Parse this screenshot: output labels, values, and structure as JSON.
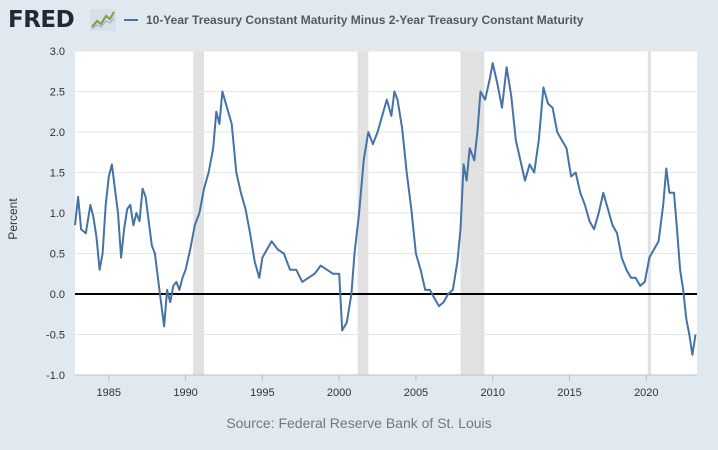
{
  "brand": {
    "name": "FRED",
    "icon": "fred-chart-icon"
  },
  "colors": {
    "series": "#4572a7",
    "recession": "#e1e1e1",
    "zero_line": "#000000",
    "grid": "#e6e6e6",
    "plot_bg": "#ffffff",
    "page_bg": "#e1e9f0"
  },
  "source": "Source: Federal Reserve Bank of St. Louis",
  "chart_data": {
    "type": "line",
    "title": "10-Year Treasury Constant Maturity Minus 2-Year Treasury Constant Maturity",
    "xlabel": "",
    "ylabel": "Percent",
    "xlim": [
      1982.8,
      2023.3
    ],
    "ylim": [
      -1.0,
      3.0
    ],
    "yticks": [
      {
        "value": 3.0,
        "label": "3.0"
      },
      {
        "value": 2.5,
        "label": "2.5"
      },
      {
        "value": 2.0,
        "label": "2.0"
      },
      {
        "value": 1.5,
        "label": "1.5"
      },
      {
        "value": 1.0,
        "label": "1.0"
      },
      {
        "value": 0.5,
        "label": "0.5"
      },
      {
        "value": 0.0,
        "label": "0.0"
      },
      {
        "value": -0.5,
        "label": "-0.5"
      },
      {
        "value": -1.0,
        "label": "-1.0"
      }
    ],
    "xticks": [
      {
        "value": 1985,
        "label": "1985"
      },
      {
        "value": 1990,
        "label": "1990"
      },
      {
        "value": 1995,
        "label": "1995"
      },
      {
        "value": 2000,
        "label": "2000"
      },
      {
        "value": 2005,
        "label": "2005"
      },
      {
        "value": 2010,
        "label": "2010"
      },
      {
        "value": 2015,
        "label": "2015"
      },
      {
        "value": 2020,
        "label": "2020"
      }
    ],
    "recessions": [
      [
        1990.5,
        1991.2
      ],
      [
        2001.2,
        2001.9
      ],
      [
        2007.9,
        2009.45
      ],
      [
        2020.1,
        2020.3
      ]
    ],
    "zero_line": 0.0,
    "series": [
      {
        "name": "10-Year Treasury Constant Maturity Minus 2-Year Treasury Constant Maturity",
        "x": [
          1982.8,
          1983.0,
          1983.2,
          1983.5,
          1983.8,
          1984.0,
          1984.2,
          1984.4,
          1984.6,
          1984.8,
          1985.0,
          1985.2,
          1985.4,
          1985.6,
          1985.8,
          1986.0,
          1986.2,
          1986.4,
          1986.6,
          1986.8,
          1987.0,
          1987.2,
          1987.4,
          1987.6,
          1987.8,
          1988.0,
          1988.2,
          1988.4,
          1988.6,
          1988.8,
          1989.0,
          1989.2,
          1989.4,
          1989.6,
          1989.8,
          1990.0,
          1990.3,
          1990.6,
          1990.9,
          1991.2,
          1991.5,
          1991.8,
          1992.0,
          1992.2,
          1992.4,
          1992.7,
          1993.0,
          1993.3,
          1993.6,
          1993.9,
          1994.2,
          1994.5,
          1994.8,
          1995.0,
          1995.3,
          1995.6,
          1996.0,
          1996.4,
          1996.8,
          1997.2,
          1997.6,
          1998.0,
          1998.4,
          1998.8,
          1999.2,
          1999.6,
          2000.0,
          2000.2,
          2000.5,
          2000.8,
          2001.0,
          2001.3,
          2001.6,
          2001.9,
          2002.2,
          2002.5,
          2002.8,
          2003.1,
          2003.4,
          2003.6,
          2003.8,
          2004.1,
          2004.4,
          2004.7,
          2005.0,
          2005.3,
          2005.6,
          2005.9,
          2006.2,
          2006.5,
          2006.8,
          2007.1,
          2007.4,
          2007.7,
          2007.9,
          2008.1,
          2008.3,
          2008.5,
          2008.8,
          2009.0,
          2009.2,
          2009.5,
          2009.8,
          2010.0,
          2010.3,
          2010.6,
          2010.9,
          2011.2,
          2011.5,
          2011.8,
          2012.1,
          2012.4,
          2012.7,
          2013.0,
          2013.3,
          2013.6,
          2013.9,
          2014.2,
          2014.5,
          2014.8,
          2015.1,
          2015.4,
          2015.7,
          2016.0,
          2016.3,
          2016.6,
          2016.9,
          2017.2,
          2017.5,
          2017.8,
          2018.1,
          2018.4,
          2018.7,
          2019.0,
          2019.3,
          2019.6,
          2019.9,
          2020.2,
          2020.5,
          2020.8,
          2021.1,
          2021.3,
          2021.5,
          2021.8,
          2022.0,
          2022.2,
          2022.4,
          2022.6,
          2022.8,
          2023.0,
          2023.2
        ],
        "values": [
          0.85,
          1.2,
          0.8,
          0.75,
          1.1,
          0.95,
          0.7,
          0.3,
          0.5,
          1.1,
          1.45,
          1.6,
          1.3,
          1.0,
          0.45,
          0.8,
          1.05,
          1.1,
          0.85,
          1.0,
          0.9,
          1.3,
          1.2,
          0.9,
          0.6,
          0.5,
          0.2,
          -0.1,
          -0.4,
          0.05,
          -0.1,
          0.1,
          0.15,
          0.05,
          0.2,
          0.3,
          0.55,
          0.85,
          1.0,
          1.3,
          1.5,
          1.8,
          2.25,
          2.1,
          2.5,
          2.3,
          2.1,
          1.5,
          1.25,
          1.05,
          0.75,
          0.4,
          0.2,
          0.45,
          0.55,
          0.65,
          0.55,
          0.5,
          0.3,
          0.3,
          0.15,
          0.2,
          0.25,
          0.35,
          0.3,
          0.25,
          0.25,
          -0.45,
          -0.35,
          0.0,
          0.5,
          1.0,
          1.65,
          2.0,
          1.85,
          2.0,
          2.2,
          2.4,
          2.2,
          2.5,
          2.4,
          2.05,
          1.5,
          1.05,
          0.5,
          0.3,
          0.05,
          0.05,
          -0.05,
          -0.15,
          -0.1,
          0.0,
          0.05,
          0.4,
          0.8,
          1.6,
          1.4,
          1.8,
          1.65,
          2.0,
          2.5,
          2.4,
          2.65,
          2.85,
          2.6,
          2.3,
          2.8,
          2.45,
          1.9,
          1.65,
          1.4,
          1.6,
          1.5,
          1.9,
          2.55,
          2.35,
          2.3,
          2.0,
          1.9,
          1.8,
          1.45,
          1.5,
          1.25,
          1.1,
          0.9,
          0.8,
          1.0,
          1.25,
          1.05,
          0.85,
          0.75,
          0.45,
          0.3,
          0.2,
          0.2,
          0.1,
          0.15,
          0.45,
          0.55,
          0.65,
          1.1,
          1.55,
          1.25,
          1.25,
          0.8,
          0.3,
          0.05,
          -0.3,
          -0.5,
          -0.75,
          -0.5
        ]
      }
    ]
  }
}
